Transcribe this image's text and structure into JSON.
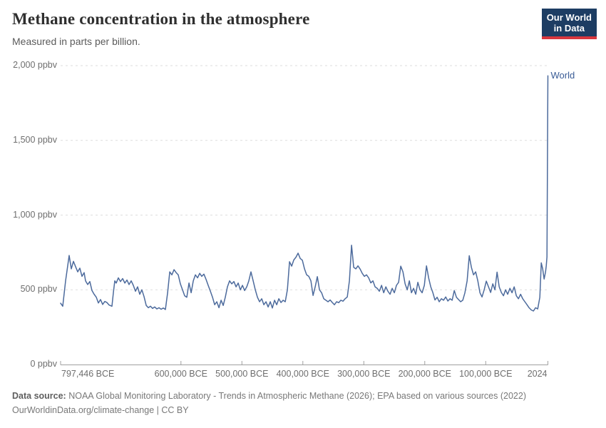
{
  "header": {
    "title": "Methane concentration in the atmosphere",
    "subtitle": "Measured in parts per billion.",
    "logo": {
      "line1": "Our World",
      "line2": "in Data"
    }
  },
  "colors": {
    "line": "#4C6A9C",
    "series_label": "#3a5c96",
    "logo_bg": "#1d3d63",
    "logo_red": "#d8373e",
    "grid": "#dddddd",
    "axis": "#a0a0a0"
  },
  "footer": {
    "datasource_label": "Data source:",
    "datasource_text": "NOAA Global Monitoring Laboratory - Trends in Atmospheric Methane (2026); EPA based on various sources (2022)",
    "url": "OurWorldinData.org/climate-change",
    "separator": "|",
    "license": "CC BY"
  },
  "chart_data": {
    "type": "line",
    "title": "Methane concentration in the atmosphere",
    "unit": "ppbv",
    "grid": true,
    "x_axis": {
      "min": -797446,
      "max": 2024,
      "ticks": [
        {
          "label": "797,446 BCE",
          "year": -797446,
          "align": "start"
        },
        {
          "label": "600,000 BCE",
          "year": -600000,
          "align": "middle"
        },
        {
          "label": "500,000 BCE",
          "year": -500000,
          "align": "middle"
        },
        {
          "label": "400,000 BCE",
          "year": -400000,
          "align": "middle"
        },
        {
          "label": "300,000 BCE",
          "year": -300000,
          "align": "middle"
        },
        {
          "label": "200,000 BCE",
          "year": -200000,
          "align": "middle"
        },
        {
          "label": "100,000 BCE",
          "year": -100000,
          "align": "middle"
        },
        {
          "label": "2024",
          "year": 2024,
          "align": "end"
        }
      ]
    },
    "y_axis": {
      "min": 0,
      "max": 2000,
      "ticks": [
        {
          "label": "0 ppbv",
          "value": 0
        },
        {
          "label": "500 ppbv",
          "value": 500
        },
        {
          "label": "1,000 ppbv",
          "value": 1000
        },
        {
          "label": "1,500 ppbv",
          "value": 1500
        },
        {
          "label": "2,000 ppbv",
          "value": 2000
        }
      ]
    },
    "series": [
      {
        "name": "World",
        "color": "#4C6A9C",
        "points": [
          [
            -797446,
            410
          ],
          [
            -793900,
            390
          ],
          [
            -789300,
            560
          ],
          [
            -783400,
            730
          ],
          [
            -779900,
            640
          ],
          [
            -776400,
            690
          ],
          [
            -772900,
            655
          ],
          [
            -769400,
            620
          ],
          [
            -765900,
            645
          ],
          [
            -762300,
            590
          ],
          [
            -758800,
            615
          ],
          [
            -756500,
            560
          ],
          [
            -753000,
            535
          ],
          [
            -749500,
            555
          ],
          [
            -746000,
            495
          ],
          [
            -742500,
            470
          ],
          [
            -738900,
            450
          ],
          [
            -735400,
            412
          ],
          [
            -731900,
            435
          ],
          [
            -728400,
            402
          ],
          [
            -724900,
            422
          ],
          [
            -721400,
            415
          ],
          [
            -717900,
            398
          ],
          [
            -713200,
            390
          ],
          [
            -710900,
            480
          ],
          [
            -708500,
            560
          ],
          [
            -706200,
            545
          ],
          [
            -702700,
            580
          ],
          [
            -699200,
            555
          ],
          [
            -695700,
            575
          ],
          [
            -692100,
            545
          ],
          [
            -688600,
            565
          ],
          [
            -685100,
            535
          ],
          [
            -681600,
            560
          ],
          [
            -678100,
            530
          ],
          [
            -674600,
            490
          ],
          [
            -671100,
            520
          ],
          [
            -667600,
            470
          ],
          [
            -664100,
            500
          ],
          [
            -660600,
            455
          ],
          [
            -657000,
            395
          ],
          [
            -653500,
            380
          ],
          [
            -650000,
            390
          ],
          [
            -646500,
            375
          ],
          [
            -643000,
            385
          ],
          [
            -639500,
            372
          ],
          [
            -636000,
            380
          ],
          [
            -632500,
            370
          ],
          [
            -629000,
            378
          ],
          [
            -625500,
            368
          ],
          [
            -621900,
            480
          ],
          [
            -618400,
            620
          ],
          [
            -614900,
            600
          ],
          [
            -611400,
            635
          ],
          [
            -607900,
            615
          ],
          [
            -604400,
            600
          ],
          [
            -600900,
            540
          ],
          [
            -597400,
            500
          ],
          [
            -593900,
            460
          ],
          [
            -590400,
            450
          ],
          [
            -586800,
            545
          ],
          [
            -583300,
            480
          ],
          [
            -579800,
            560
          ],
          [
            -576300,
            600
          ],
          [
            -572800,
            580
          ],
          [
            -569300,
            610
          ],
          [
            -565800,
            590
          ],
          [
            -562300,
            605
          ],
          [
            -558800,
            570
          ],
          [
            -555300,
            530
          ],
          [
            -551700,
            490
          ],
          [
            -548200,
            450
          ],
          [
            -544700,
            400
          ],
          [
            -541200,
            420
          ],
          [
            -537700,
            380
          ],
          [
            -534200,
            430
          ],
          [
            -530700,
            395
          ],
          [
            -527200,
            450
          ],
          [
            -523700,
            520
          ],
          [
            -520200,
            560
          ],
          [
            -516600,
            540
          ],
          [
            -513100,
            555
          ],
          [
            -509600,
            520
          ],
          [
            -506100,
            545
          ],
          [
            -502600,
            500
          ],
          [
            -499100,
            530
          ],
          [
            -495600,
            495
          ],
          [
            -492100,
            520
          ],
          [
            -488600,
            560
          ],
          [
            -485100,
            620
          ],
          [
            -481500,
            560
          ],
          [
            -478000,
            500
          ],
          [
            -474500,
            450
          ],
          [
            -471000,
            420
          ],
          [
            -467500,
            440
          ],
          [
            -464000,
            400
          ],
          [
            -460500,
            420
          ],
          [
            -457000,
            385
          ],
          [
            -453500,
            420
          ],
          [
            -450000,
            378
          ],
          [
            -446400,
            430
          ],
          [
            -442900,
            400
          ],
          [
            -439400,
            440
          ],
          [
            -435900,
            415
          ],
          [
            -432400,
            430
          ],
          [
            -428900,
            420
          ],
          [
            -425400,
            500
          ],
          [
            -421900,
            688
          ],
          [
            -418400,
            658
          ],
          [
            -414900,
            700
          ],
          [
            -411300,
            718
          ],
          [
            -407800,
            745
          ],
          [
            -404300,
            710
          ],
          [
            -400800,
            698
          ],
          [
            -397300,
            640
          ],
          [
            -393800,
            600
          ],
          [
            -390300,
            590
          ],
          [
            -386800,
            560
          ],
          [
            -383300,
            462
          ],
          [
            -379800,
            520
          ],
          [
            -376200,
            588
          ],
          [
            -372700,
            500
          ],
          [
            -369200,
            480
          ],
          [
            -365700,
            440
          ],
          [
            -362200,
            430
          ],
          [
            -358700,
            420
          ],
          [
            -355200,
            432
          ],
          [
            -351700,
            415
          ],
          [
            -348200,
            400
          ],
          [
            -344700,
            420
          ],
          [
            -341100,
            414
          ],
          [
            -337600,
            430
          ],
          [
            -334100,
            424
          ],
          [
            -330600,
            440
          ],
          [
            -327100,
            452
          ],
          [
            -323600,
            560
          ],
          [
            -320100,
            798
          ],
          [
            -316600,
            650
          ],
          [
            -313100,
            640
          ],
          [
            -309600,
            660
          ],
          [
            -306000,
            638
          ],
          [
            -302500,
            610
          ],
          [
            -299000,
            590
          ],
          [
            -295500,
            600
          ],
          [
            -292000,
            580
          ],
          [
            -288500,
            546
          ],
          [
            -285000,
            560
          ],
          [
            -281500,
            520
          ],
          [
            -278000,
            510
          ],
          [
            -274500,
            490
          ],
          [
            -270900,
            530
          ],
          [
            -267400,
            480
          ],
          [
            -263900,
            520
          ],
          [
            -260400,
            490
          ],
          [
            -256900,
            470
          ],
          [
            -253400,
            510
          ],
          [
            -249900,
            480
          ],
          [
            -246400,
            530
          ],
          [
            -242900,
            550
          ],
          [
            -239400,
            658
          ],
          [
            -235800,
            620
          ],
          [
            -232300,
            540
          ],
          [
            -228800,
            500
          ],
          [
            -225300,
            560
          ],
          [
            -221800,
            480
          ],
          [
            -218300,
            510
          ],
          [
            -214800,
            470
          ],
          [
            -211300,
            550
          ],
          [
            -207800,
            500
          ],
          [
            -204300,
            480
          ],
          [
            -200700,
            530
          ],
          [
            -197200,
            660
          ],
          [
            -193700,
            580
          ],
          [
            -190200,
            520
          ],
          [
            -186700,
            480
          ],
          [
            -183200,
            432
          ],
          [
            -179700,
            450
          ],
          [
            -176200,
            420
          ],
          [
            -172700,
            440
          ],
          [
            -169200,
            430
          ],
          [
            -165600,
            452
          ],
          [
            -162100,
            425
          ],
          [
            -158600,
            440
          ],
          [
            -155100,
            430
          ],
          [
            -151600,
            495
          ],
          [
            -148100,
            450
          ],
          [
            -144600,
            435
          ],
          [
            -141100,
            420
          ],
          [
            -137600,
            430
          ],
          [
            -134100,
            480
          ],
          [
            -130500,
            560
          ],
          [
            -127000,
            728
          ],
          [
            -123500,
            650
          ],
          [
            -120000,
            600
          ],
          [
            -116500,
            620
          ],
          [
            -113000,
            560
          ],
          [
            -109500,
            480
          ],
          [
            -106000,
            452
          ],
          [
            -102500,
            500
          ],
          [
            -99000,
            558
          ],
          [
            -95400,
            520
          ],
          [
            -91900,
            482
          ],
          [
            -88400,
            540
          ],
          [
            -84900,
            500
          ],
          [
            -81400,
            618
          ],
          [
            -77900,
            520
          ],
          [
            -74400,
            482
          ],
          [
            -70900,
            460
          ],
          [
            -67400,
            500
          ],
          [
            -63900,
            470
          ],
          [
            -60300,
            510
          ],
          [
            -56800,
            480
          ],
          [
            -53300,
            520
          ],
          [
            -49800,
            460
          ],
          [
            -46300,
            440
          ],
          [
            -42800,
            470
          ],
          [
            -39300,
            440
          ],
          [
            -35800,
            420
          ],
          [
            -32300,
            400
          ],
          [
            -28800,
            380
          ],
          [
            -25200,
            365
          ],
          [
            -21700,
            358
          ],
          [
            -18200,
            380
          ],
          [
            -14700,
            372
          ],
          [
            -11200,
            450
          ],
          [
            -8900,
            680
          ],
          [
            -6500,
            640
          ],
          [
            -4200,
            572
          ],
          [
            -1800,
            620
          ],
          [
            -700,
            660
          ],
          [
            500,
            720
          ],
          [
            2024,
            1932
          ]
        ]
      }
    ]
  }
}
